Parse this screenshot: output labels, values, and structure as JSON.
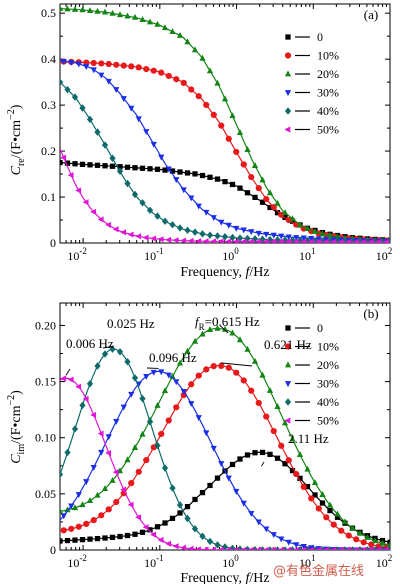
{
  "chart_data": [
    {
      "panel_label": "(a)",
      "type": "line",
      "xscale": "log",
      "xlim": [
        0.005,
        100
      ],
      "ylim": [
        0,
        0.52
      ],
      "xticks": [
        {
          "value": 0.01,
          "base": "10",
          "exp": "-2"
        },
        {
          "value": 0.1,
          "base": "10",
          "exp": "-1"
        },
        {
          "value": 1,
          "base": "10",
          "exp": "0"
        },
        {
          "value": 10,
          "base": "10",
          "exp": "1"
        },
        {
          "value": 100,
          "base": "10",
          "exp": "2"
        }
      ],
      "yticks": [
        {
          "value": 0,
          "label": "0"
        },
        {
          "value": 0.1,
          "label": "0.1"
        },
        {
          "value": 0.2,
          "label": "0.2"
        },
        {
          "value": 0.3,
          "label": "0.3"
        },
        {
          "value": 0.4,
          "label": "0.4"
        },
        {
          "value": 0.5,
          "label": "0.5"
        }
      ],
      "ylabel": {
        "symbol": "C",
        "sub": "re",
        "unit_prefix": "/(F•cm",
        "sup": "−2",
        "suffix": ")"
      },
      "xlabel": {
        "text": "Frequency, ",
        "var": "f",
        "unit": "/Hz"
      },
      "legend_position": "right",
      "series": [
        {
          "name": "0",
          "color": "#000000",
          "marker": "square",
          "points": [
            [
              0.005,
              0.175
            ],
            [
              0.01,
              0.171
            ],
            [
              0.03,
              0.166
            ],
            [
              0.1,
              0.16
            ],
            [
              0.3,
              0.15
            ],
            [
              0.6,
              0.138
            ],
            [
              1,
              0.124
            ],
            [
              2,
              0.093
            ],
            [
              4,
              0.058
            ],
            [
              8,
              0.033
            ],
            [
              15,
              0.02
            ],
            [
              30,
              0.012
            ],
            [
              60,
              0.008
            ],
            [
              100,
              0.006
            ]
          ]
        },
        {
          "name": "10%",
          "color": "#e8191b",
          "marker": "circle",
          "points": [
            [
              0.005,
              0.395
            ],
            [
              0.01,
              0.393
            ],
            [
              0.02,
              0.39
            ],
            [
              0.05,
              0.383
            ],
            [
              0.1,
              0.372
            ],
            [
              0.2,
              0.35
            ],
            [
              0.35,
              0.314
            ],
            [
              0.6,
              0.262
            ],
            [
              1,
              0.197
            ],
            [
              1.6,
              0.14
            ],
            [
              2.5,
              0.093
            ],
            [
              4,
              0.058
            ],
            [
              7,
              0.033
            ],
            [
              12,
              0.02
            ],
            [
              25,
              0.011
            ],
            [
              50,
              0.007
            ],
            [
              100,
              0.005
            ]
          ]
        },
        {
          "name": "20%",
          "color": "#138515",
          "marker": "triangle-up",
          "points": [
            [
              0.005,
              0.51
            ],
            [
              0.01,
              0.507
            ],
            [
              0.02,
              0.502
            ],
            [
              0.05,
              0.49
            ],
            [
              0.1,
              0.474
            ],
            [
              0.2,
              0.448
            ],
            [
              0.35,
              0.405
            ],
            [
              0.6,
              0.34
            ],
            [
              1,
              0.257
            ],
            [
              1.6,
              0.18
            ],
            [
              2.5,
              0.118
            ],
            [
              4,
              0.07
            ],
            [
              7,
              0.037
            ],
            [
              12,
              0.021
            ],
            [
              25,
              0.011
            ],
            [
              50,
              0.007
            ],
            [
              100,
              0.005
            ]
          ]
        },
        {
          "name": "30%",
          "color": "#1a2ee6",
          "marker": "triangle-down",
          "points": [
            [
              0.005,
              0.396
            ],
            [
              0.008,
              0.392
            ],
            [
              0.013,
              0.38
            ],
            [
              0.02,
              0.358
            ],
            [
              0.03,
              0.326
            ],
            [
              0.05,
              0.278
            ],
            [
              0.08,
              0.22
            ],
            [
              0.12,
              0.17
            ],
            [
              0.2,
              0.118
            ],
            [
              0.35,
              0.074
            ],
            [
              0.6,
              0.047
            ],
            [
              1,
              0.032
            ],
            [
              2,
              0.021
            ],
            [
              5,
              0.013
            ],
            [
              15,
              0.008
            ],
            [
              50,
              0.005
            ],
            [
              100,
              0.004
            ]
          ]
        },
        {
          "name": "40%",
          "color": "#0f6b6b",
          "marker": "diamond",
          "points": [
            [
              0.005,
              0.35
            ],
            [
              0.008,
              0.316
            ],
            [
              0.012,
              0.272
            ],
            [
              0.018,
              0.222
            ],
            [
              0.025,
              0.18
            ],
            [
              0.035,
              0.138
            ],
            [
              0.05,
              0.1
            ],
            [
              0.08,
              0.066
            ],
            [
              0.12,
              0.046
            ],
            [
              0.2,
              0.03
            ],
            [
              0.4,
              0.018
            ],
            [
              1,
              0.011
            ],
            [
              3,
              0.007
            ],
            [
              10,
              0.005
            ],
            [
              100,
              0.003
            ]
          ]
        },
        {
          "name": "50%",
          "color": "#e016d6",
          "marker": "triangle-left",
          "points": [
            [
              0.005,
              0.205
            ],
            [
              0.0065,
              0.16
            ],
            [
              0.008,
              0.126
            ],
            [
              0.01,
              0.098
            ],
            [
              0.013,
              0.072
            ],
            [
              0.017,
              0.052
            ],
            [
              0.023,
              0.036
            ],
            [
              0.03,
              0.026
            ],
            [
              0.045,
              0.017
            ],
            [
              0.07,
              0.011
            ],
            [
              0.12,
              0.007
            ],
            [
              0.3,
              0.004
            ],
            [
              1,
              0.003
            ],
            [
              100,
              0.002
            ]
          ]
        }
      ]
    },
    {
      "panel_label": "(b)",
      "type": "line",
      "xscale": "log",
      "xlim": [
        0.005,
        100
      ],
      "ylim": [
        0,
        0.22
      ],
      "xticks": [
        {
          "value": 0.01,
          "base": "10",
          "exp": "-2"
        },
        {
          "value": 0.1,
          "base": "10",
          "exp": "-1"
        },
        {
          "value": 1,
          "base": "10",
          "exp": "0"
        },
        {
          "value": 10,
          "base": "10",
          "exp": "1"
        },
        {
          "value": 100,
          "base": "10",
          "exp": "2"
        }
      ],
      "yticks": [
        {
          "value": 0,
          "label": "0"
        },
        {
          "value": 0.05,
          "label": "0.05"
        },
        {
          "value": 0.1,
          "label": "0.10"
        },
        {
          "value": 0.15,
          "label": "0.15"
        },
        {
          "value": 0.2,
          "label": "0.20"
        }
      ],
      "ylabel": {
        "symbol": "C",
        "sub": "im",
        "unit_prefix": "/(F•cm",
        "sup": "−2",
        "suffix": ")"
      },
      "xlabel": {
        "text": "Frequency, ",
        "var": "f",
        "unit": "/Hz"
      },
      "legend_position": "right",
      "series": [
        {
          "name": "0",
          "color": "#000000",
          "marker": "square",
          "peak_f": 2.11,
          "peak_y": 0.072,
          "width": 0.62,
          "base": [
            [
              0.005,
              0.008
            ],
            [
              0.05,
              0.012
            ],
            [
              0.3,
              0.018
            ],
            [
              2.11,
              0.015
            ],
            [
              100,
              0.005
            ]
          ]
        },
        {
          "name": "10%",
          "color": "#e8191b",
          "marker": "circle",
          "peak_f": 0.621,
          "peak_y": 0.164,
          "width": 0.74,
          "base": [
            [
              0.005,
              0.014
            ],
            [
              0.05,
              0.012
            ],
            [
              0.621,
              0.0
            ],
            [
              100,
              0.0
            ]
          ]
        },
        {
          "name": "20%",
          "color": "#138515",
          "marker": "triangle-up",
          "peak_f": 0.615,
          "peak_y": 0.197,
          "width": 0.8,
          "base": [
            [
              0.005,
              0.028
            ],
            [
              0.05,
              0.016
            ],
            [
              0.615,
              0.0
            ],
            [
              100,
              0.0
            ]
          ]
        },
        {
          "name": "30%",
          "color": "#1a2ee6",
          "marker": "triangle-down",
          "peak_f": 0.096,
          "peak_y": 0.159,
          "width": 0.68,
          "base": [
            [
              0.005,
              0.0
            ],
            [
              100,
              0.0
            ]
          ]
        },
        {
          "name": "40%",
          "color": "#0f6b6b",
          "marker": "diamond",
          "peak_f": 0.025,
          "peak_y": 0.179,
          "width": 0.5,
          "base": [
            [
              0.005,
              0.0
            ],
            [
              100,
              0.0
            ]
          ]
        },
        {
          "name": "50%",
          "color": "#e016d6",
          "marker": "triangle-left",
          "peak_f": 0.006,
          "peak_y": 0.153,
          "width": 0.52,
          "base": [
            [
              0.005,
              0.0
            ],
            [
              100,
              0.0
            ]
          ]
        }
      ],
      "peak_annotations": [
        {
          "text": "0.006 Hz",
          "f": 0.006,
          "y": 0.153
        },
        {
          "text": "0.025 Hz",
          "f": 0.025,
          "y": 0.179
        },
        {
          "text": "0.096 Hz",
          "f": 0.096,
          "y": 0.159
        },
        {
          "text": "0.615 Hz",
          "prefix_var": "f",
          "prefix_sub": "R",
          "prefix_eq": "=",
          "f": 0.615,
          "y": 0.197
        },
        {
          "text": "0.621 Hz",
          "f": 0.621,
          "y": 0.164
        },
        {
          "text": "2.11 Hz",
          "f": 2.11,
          "y": 0.072
        }
      ]
    }
  ],
  "watermark": "@有色金属在线"
}
